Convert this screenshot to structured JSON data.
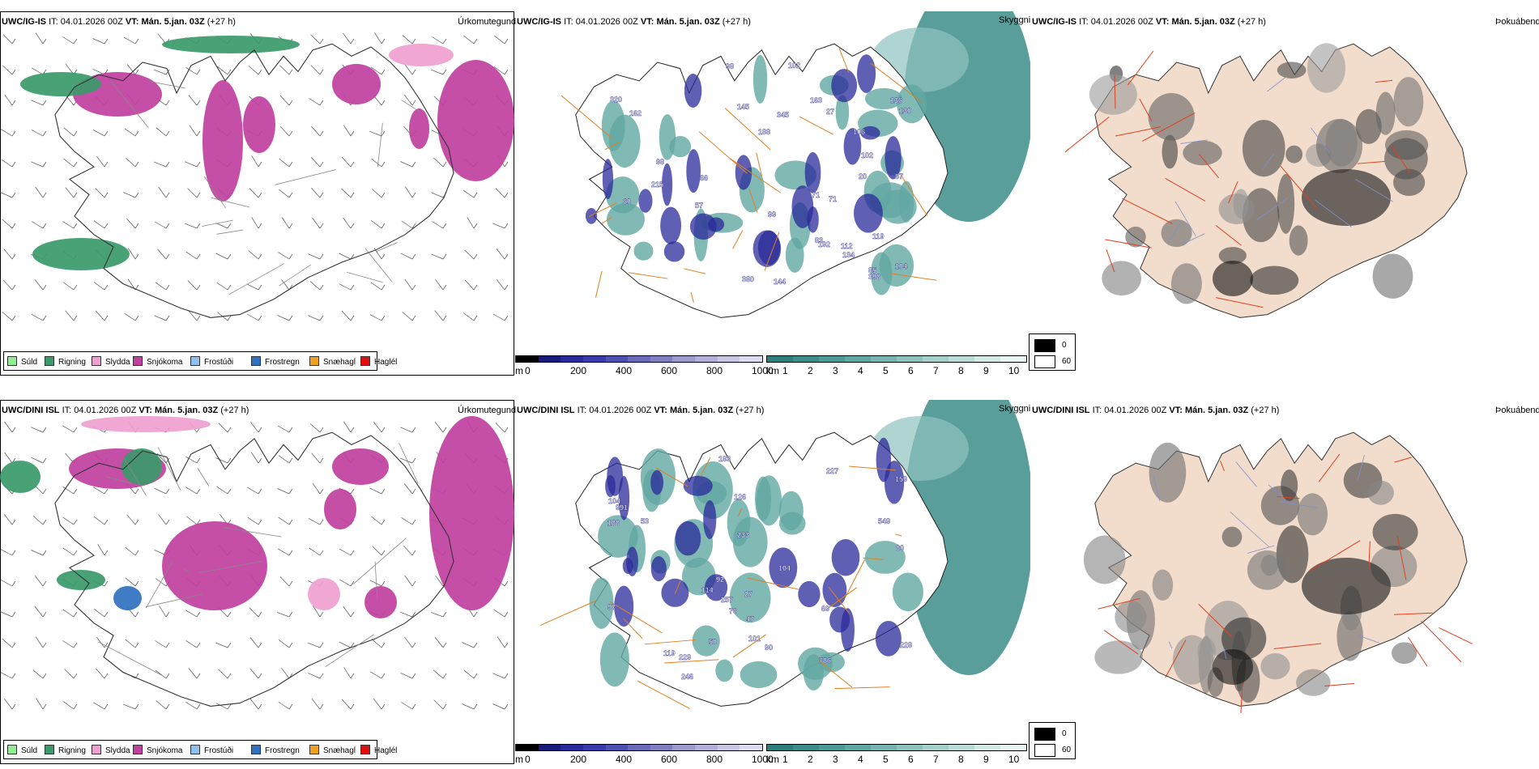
{
  "rows": [
    {
      "model": "UWC/IG-IS",
      "it_label": "IT:",
      "it_value": "04.01.2026 00Z",
      "vt_label": "VT:",
      "vt_value": "Mán. 5.jan. 03Z",
      "lead": "(+27 h)",
      "labels_height": [
        "99",
        "83",
        "20",
        "136",
        "215",
        "130",
        "119",
        "87",
        "85",
        "192",
        "98",
        "398",
        "71",
        "102",
        "57",
        "66",
        "102",
        "188",
        "134",
        "320",
        "106",
        "380",
        "145",
        "144",
        "163",
        "98",
        "60",
        "112",
        "345",
        "71",
        "162",
        "104",
        "27"
      ]
    },
    {
      "model": "UWC/DINI ISL",
      "it_label": "IT:",
      "it_value": "04.01.2026 00Z",
      "vt_label": "VT:",
      "vt_value": "Mán. 5.jan. 03Z",
      "lead": "(+27 h)",
      "labels_height": [
        "228",
        "104",
        "27",
        "257",
        "159",
        "227",
        "104",
        "114",
        "126",
        "119",
        "188",
        "549",
        "246",
        "92",
        "47",
        "90",
        "69",
        "101",
        "50",
        "183",
        "229",
        "991",
        "786",
        "53",
        "80",
        "97",
        "233",
        "76"
      ]
    }
  ],
  "panel_titles": {
    "precip_type": "Úrkomutegund",
    "cloud_base": "Skyggni",
    "fog": "Þokuábendi"
  },
  "precip_legend": [
    {
      "label": "Súld",
      "color": "#90ee90"
    },
    {
      "label": "Rigning",
      "color": "#3a9a6a"
    },
    {
      "label": "Slydda",
      "color": "#f0a0d0"
    },
    {
      "label": "Snjókoma",
      "color": "#c040a0"
    },
    {
      "label": "Frostúði",
      "color": "#90c0f0"
    },
    {
      "label": "Frostregn",
      "color": "#3070c0"
    },
    {
      "label": "Snæhagl",
      "color": "#f0a020"
    },
    {
      "label": "Haglél",
      "color": "#e01010"
    }
  ],
  "height_bar": {
    "unit": "m",
    "ticks": [
      "0",
      "200",
      "400",
      "600",
      "800",
      "1000"
    ],
    "colors": [
      "#000000",
      "#1a1a7a",
      "#2a2a9a",
      "#3a3aaa",
      "#5050b0",
      "#6a6ab8",
      "#8080c0",
      "#9a9acc",
      "#b0b0d8",
      "#c8c8e4",
      "#dcdcf0"
    ]
  },
  "vis_bar": {
    "unit": "km",
    "ticks": [
      "1",
      "2",
      "3",
      "4",
      "5",
      "6",
      "7",
      "8",
      "9",
      "10"
    ],
    "colors": [
      "#2e7f7a",
      "#3c8d88",
      "#4e9a94",
      "#62a8a2",
      "#78b5b0",
      "#8ec2bd",
      "#a4cfca",
      "#bbdcd8",
      "#d2e9e6",
      "#e8f4f2"
    ]
  },
  "fog_legend": {
    "items": [
      {
        "label": "0",
        "color": "#000000"
      },
      {
        "label": "60",
        "color": "#ffffff"
      }
    ]
  }
}
